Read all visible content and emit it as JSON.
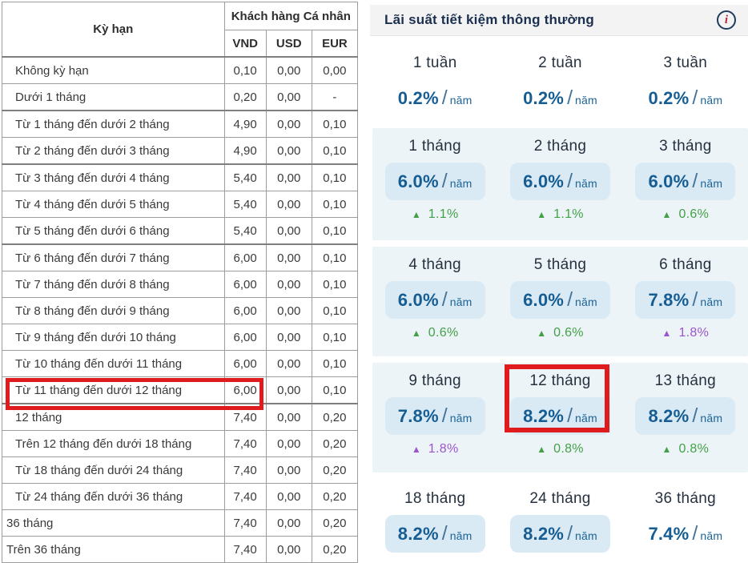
{
  "left_table": {
    "header": {
      "term": "Kỳ hạn",
      "group": "Khách hàng Cá nhân",
      "currencies": [
        "VND",
        "USD",
        "EUR"
      ]
    },
    "rows": [
      {
        "term": "Không kỳ hạn",
        "vnd": "0,10",
        "usd": "0,00",
        "eur": "0,00",
        "sep": false,
        "tight": false,
        "highlighted": false
      },
      {
        "term": "Dưới 1 tháng",
        "vnd": "0,20",
        "usd": "0,00",
        "eur": "-",
        "sep": false,
        "tight": false,
        "highlighted": false
      },
      {
        "term": "Từ 1 tháng đến dưới 2 tháng",
        "vnd": "4,90",
        "usd": "0,00",
        "eur": "0,10",
        "sep": true,
        "tight": false,
        "highlighted": false
      },
      {
        "term": "Từ 2 tháng đến dưới 3 tháng",
        "vnd": "4,90",
        "usd": "0,00",
        "eur": "0,10",
        "sep": false,
        "tight": false,
        "highlighted": false
      },
      {
        "term": "Từ 3 tháng đến dưới 4 tháng",
        "vnd": "5,40",
        "usd": "0,00",
        "eur": "0,10",
        "sep": true,
        "tight": false,
        "highlighted": false
      },
      {
        "term": "Từ 4 tháng đến dưới 5 tháng",
        "vnd": "5,40",
        "usd": "0,00",
        "eur": "0,10",
        "sep": false,
        "tight": false,
        "highlighted": false
      },
      {
        "term": "Từ 5 tháng đến dưới 6 tháng",
        "vnd": "5,40",
        "usd": "0,00",
        "eur": "0,10",
        "sep": false,
        "tight": false,
        "highlighted": false
      },
      {
        "term": "Từ 6 tháng đến dưới 7 tháng",
        "vnd": "6,00",
        "usd": "0,00",
        "eur": "0,10",
        "sep": true,
        "tight": false,
        "highlighted": false
      },
      {
        "term": "Từ 7 tháng đến dưới 8 tháng",
        "vnd": "6,00",
        "usd": "0,00",
        "eur": "0,10",
        "sep": false,
        "tight": false,
        "highlighted": false
      },
      {
        "term": "Từ 8 tháng đến dưới 9 tháng",
        "vnd": "6,00",
        "usd": "0,00",
        "eur": "0,10",
        "sep": false,
        "tight": false,
        "highlighted": false
      },
      {
        "term": "Từ 9 tháng đến dưới 10 tháng",
        "vnd": "6,00",
        "usd": "0,00",
        "eur": "0,10",
        "sep": false,
        "tight": false,
        "highlighted": false
      },
      {
        "term": "Từ 10 tháng đến dưới 11 tháng",
        "vnd": "6,00",
        "usd": "0,00",
        "eur": "0,10",
        "sep": false,
        "tight": false,
        "highlighted": false
      },
      {
        "term": "Từ 11 tháng đến dưới 12 tháng",
        "vnd": "6,00",
        "usd": "0,00",
        "eur": "0,10",
        "sep": false,
        "tight": false,
        "highlighted": false
      },
      {
        "term": "12 tháng",
        "vnd": "7,40",
        "usd": "0,00",
        "eur": "0,20",
        "sep": true,
        "tight": false,
        "highlighted": true
      },
      {
        "term": "Trên 12 tháng đến dưới 18 tháng",
        "vnd": "7,40",
        "usd": "0,00",
        "eur": "0,20",
        "sep": false,
        "tight": false,
        "highlighted": false
      },
      {
        "term": "Từ 18 tháng đến dưới 24 tháng",
        "vnd": "7,40",
        "usd": "0,00",
        "eur": "0,20",
        "sep": false,
        "tight": false,
        "highlighted": false
      },
      {
        "term": "Từ 24 tháng đến dưới 36 tháng",
        "vnd": "7,40",
        "usd": "0,00",
        "eur": "0,20",
        "sep": false,
        "tight": false,
        "highlighted": false
      },
      {
        "term": "36 tháng",
        "vnd": "7,40",
        "usd": "0,00",
        "eur": "0,20",
        "sep": false,
        "tight": true,
        "highlighted": false
      },
      {
        "term": "Trên 36 tháng",
        "vnd": "7,40",
        "usd": "0,00",
        "eur": "0,20",
        "sep": false,
        "tight": true,
        "highlighted": false
      }
    ]
  },
  "right_panel": {
    "title": "Lãi suất tiết kiệm thông thường",
    "info_icon": "i",
    "rate_slash": "/",
    "rate_unit": "năm",
    "up_arrow": "▲",
    "rows": [
      {
        "shaded": false,
        "cells": [
          {
            "term": "1 tuần",
            "rate": "0.2%",
            "pill": false,
            "change": null,
            "change_color": null,
            "highlighted": false
          },
          {
            "term": "2 tuần",
            "rate": "0.2%",
            "pill": false,
            "change": null,
            "change_color": null,
            "highlighted": false
          },
          {
            "term": "3 tuần",
            "rate": "0.2%",
            "pill": false,
            "change": null,
            "change_color": null,
            "highlighted": false
          }
        ]
      },
      {
        "shaded": true,
        "cells": [
          {
            "term": "1 tháng",
            "rate": "6.0%",
            "pill": true,
            "change": "1.1%",
            "change_color": "green",
            "highlighted": false
          },
          {
            "term": "2 tháng",
            "rate": "6.0%",
            "pill": true,
            "change": "1.1%",
            "change_color": "green",
            "highlighted": false
          },
          {
            "term": "3 tháng",
            "rate": "6.0%",
            "pill": true,
            "change": "0.6%",
            "change_color": "green",
            "highlighted": false
          }
        ]
      },
      {
        "shaded": true,
        "cells": [
          {
            "term": "4 tháng",
            "rate": "6.0%",
            "pill": true,
            "change": "0.6%",
            "change_color": "green",
            "highlighted": false
          },
          {
            "term": "5 tháng",
            "rate": "6.0%",
            "pill": true,
            "change": "0.6%",
            "change_color": "green",
            "highlighted": false
          },
          {
            "term": "6 tháng",
            "rate": "7.8%",
            "pill": true,
            "change": "1.8%",
            "change_color": "purple",
            "highlighted": false
          }
        ]
      },
      {
        "shaded": true,
        "cells": [
          {
            "term": "9 tháng",
            "rate": "7.8%",
            "pill": true,
            "change": "1.8%",
            "change_color": "purple",
            "highlighted": false
          },
          {
            "term": "12 tháng",
            "rate": "8.2%",
            "pill": true,
            "change": "0.8%",
            "change_color": "green",
            "highlighted": true
          },
          {
            "term": "13 tháng",
            "rate": "8.2%",
            "pill": true,
            "change": "0.8%",
            "change_color": "green",
            "highlighted": false
          }
        ]
      },
      {
        "shaded": false,
        "cells": [
          {
            "term": "18 tháng",
            "rate": "8.2%",
            "pill": true,
            "change": null,
            "change_color": null,
            "highlighted": false
          },
          {
            "term": "24 tháng",
            "rate": "8.2%",
            "pill": true,
            "change": null,
            "change_color": null,
            "highlighted": false
          },
          {
            "term": "36 tháng",
            "rate": "7.4%",
            "pill": false,
            "change": null,
            "change_color": null,
            "highlighted": false
          }
        ]
      }
    ]
  },
  "colors": {
    "highlight_red": "#e01b1e",
    "rate_blue": "#155d92",
    "pill_bg": "#d9eaf4",
    "section_bg": "#edf4f8",
    "change_green": "#43a047",
    "change_purple": "#9b55cc",
    "title_navy": "#1b3050",
    "info_icon_red": "#b5293a"
  }
}
